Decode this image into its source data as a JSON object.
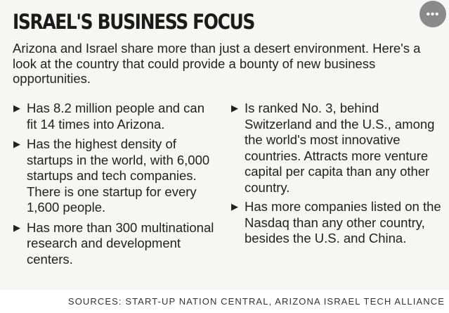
{
  "header": {
    "title": "ISRAEL'S BUSINESS FOCUS",
    "more_button_label": "•••"
  },
  "intro": "Arizona and Israel share more than just a desert environment. Here's a look at the country that could provide a bounty of new business opportunities.",
  "bullet_icon": "triangle-right-icon",
  "facts_left": [
    "Has 8.2 million people and can fit 14 times into Arizona.",
    "Has the highest density of startups in the world, with 6,000 startups and tech companies. There is one startup for every 1,600 people.",
    "Has more than 300 multinational research and development centers."
  ],
  "facts_right": [
    "Is ranked No. 3, behind Switzerland and the U.S., among the world's most innovative countries. Attracts more venture capital per capita than any other country.",
    "Has more companies listed on the Nasdaq than any other country, besides the U.S. and China."
  ],
  "footer": {
    "sources": "SOURCES: START-UP NATION CENTRAL, ARIZONA ISRAEL TECH ALLIANCE"
  },
  "colors": {
    "panel_background": "#f6f6f3",
    "text": "#1e1e1e",
    "more_button": "#8a8a8a"
  }
}
